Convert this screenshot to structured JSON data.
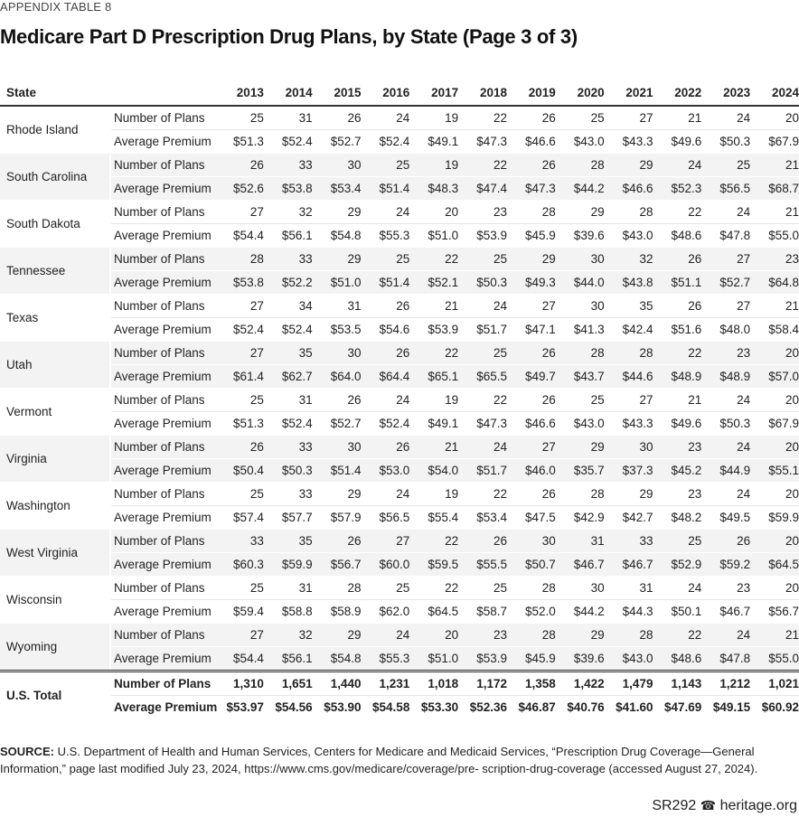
{
  "appendix_label": "APPENDIX TABLE 8",
  "title": "Medicare Part D Prescription Drug Plans, by State (Page 3 of 3)",
  "header": {
    "state": "State",
    "years": [
      "2013",
      "2014",
      "2015",
      "2016",
      "2017",
      "2018",
      "2019",
      "2020",
      "2021",
      "2022",
      "2023",
      "2024"
    ]
  },
  "row_labels": {
    "plans": "Number of Plans",
    "premium": "Average Premium"
  },
  "states": [
    {
      "name": "Rhode Island",
      "plans": [
        "25",
        "31",
        "26",
        "24",
        "19",
        "22",
        "26",
        "25",
        "27",
        "21",
        "24",
        "20"
      ],
      "premium": [
        "$51.3",
        "$52.4",
        "$52.7",
        "$52.4",
        "$49.1",
        "$47.3",
        "$46.6",
        "$43.0",
        "$43.3",
        "$49.6",
        "$50.3",
        "$67.9"
      ]
    },
    {
      "name": "South Carolina",
      "plans": [
        "26",
        "33",
        "30",
        "25",
        "19",
        "22",
        "26",
        "28",
        "29",
        "24",
        "25",
        "21"
      ],
      "premium": [
        "$52.6",
        "$53.8",
        "$53.4",
        "$51.4",
        "$48.3",
        "$47.4",
        "$47.3",
        "$44.2",
        "$46.6",
        "$52.3",
        "$56.5",
        "$68.7"
      ]
    },
    {
      "name": "South Dakota",
      "plans": [
        "27",
        "32",
        "29",
        "24",
        "20",
        "23",
        "28",
        "29",
        "28",
        "22",
        "24",
        "21"
      ],
      "premium": [
        "$54.4",
        "$56.1",
        "$54.8",
        "$55.3",
        "$51.0",
        "$53.9",
        "$45.9",
        "$39.6",
        "$43.0",
        "$48.6",
        "$47.8",
        "$55.0"
      ]
    },
    {
      "name": "Tennessee",
      "plans": [
        "28",
        "33",
        "29",
        "25",
        "22",
        "25",
        "29",
        "30",
        "32",
        "26",
        "27",
        "23"
      ],
      "premium": [
        "$53.8",
        "$52.2",
        "$51.0",
        "$51.4",
        "$52.1",
        "$50.3",
        "$49.3",
        "$44.0",
        "$43.8",
        "$51.1",
        "$52.7",
        "$64.8"
      ]
    },
    {
      "name": "Texas",
      "plans": [
        "27",
        "34",
        "31",
        "26",
        "21",
        "24",
        "27",
        "30",
        "35",
        "26",
        "27",
        "21"
      ],
      "premium": [
        "$52.4",
        "$52.4",
        "$53.5",
        "$54.6",
        "$53.9",
        "$51.7",
        "$47.1",
        "$41.3",
        "$42.4",
        "$51.6",
        "$48.0",
        "$58.4"
      ]
    },
    {
      "name": "Utah",
      "plans": [
        "27",
        "35",
        "30",
        "26",
        "22",
        "25",
        "26",
        "28",
        "28",
        "22",
        "23",
        "20"
      ],
      "premium": [
        "$61.4",
        "$62.7",
        "$64.0",
        "$64.4",
        "$65.1",
        "$65.5",
        "$49.7",
        "$43.7",
        "$44.6",
        "$48.9",
        "$48.9",
        "$57.0"
      ]
    },
    {
      "name": "Vermont",
      "plans": [
        "25",
        "31",
        "26",
        "24",
        "19",
        "22",
        "26",
        "25",
        "27",
        "21",
        "24",
        "20"
      ],
      "premium": [
        "$51.3",
        "$52.4",
        "$52.7",
        "$52.4",
        "$49.1",
        "$47.3",
        "$46.6",
        "$43.0",
        "$43.3",
        "$49.6",
        "$50.3",
        "$67.9"
      ]
    },
    {
      "name": "Virginia",
      "plans": [
        "26",
        "33",
        "30",
        "26",
        "21",
        "24",
        "27",
        "29",
        "30",
        "23",
        "24",
        "20"
      ],
      "premium": [
        "$50.4",
        "$50.3",
        "$51.4",
        "$53.0",
        "$54.0",
        "$51.7",
        "$46.0",
        "$35.7",
        "$37.3",
        "$45.2",
        "$44.9",
        "$55.1"
      ]
    },
    {
      "name": "Washington",
      "plans": [
        "25",
        "33",
        "29",
        "24",
        "19",
        "22",
        "26",
        "28",
        "29",
        "23",
        "24",
        "20"
      ],
      "premium": [
        "$57.4",
        "$57.7",
        "$57.9",
        "$56.5",
        "$55.4",
        "$53.4",
        "$47.5",
        "$42.9",
        "$42.7",
        "$48.2",
        "$49.5",
        "$59.9"
      ]
    },
    {
      "name": "West Virginia",
      "plans": [
        "33",
        "35",
        "26",
        "27",
        "22",
        "26",
        "30",
        "31",
        "33",
        "25",
        "26",
        "20"
      ],
      "premium": [
        "$60.3",
        "$59.9",
        "$56.7",
        "$60.0",
        "$59.5",
        "$55.5",
        "$50.7",
        "$46.7",
        "$46.7",
        "$52.9",
        "$59.2",
        "$64.5"
      ]
    },
    {
      "name": "Wisconsin",
      "plans": [
        "25",
        "31",
        "28",
        "25",
        "22",
        "25",
        "28",
        "30",
        "31",
        "24",
        "23",
        "20"
      ],
      "premium": [
        "$59.4",
        "$58.8",
        "$58.9",
        "$62.0",
        "$64.5",
        "$58.7",
        "$52.0",
        "$44.2",
        "$44.3",
        "$50.1",
        "$46.7",
        "$56.7"
      ]
    },
    {
      "name": "Wyoming",
      "plans": [
        "27",
        "32",
        "29",
        "24",
        "20",
        "23",
        "28",
        "29",
        "28",
        "22",
        "24",
        "21"
      ],
      "premium": [
        "$54.4",
        "$56.1",
        "$54.8",
        "$55.3",
        "$51.0",
        "$53.9",
        "$45.9",
        "$39.6",
        "$43.0",
        "$48.6",
        "$47.8",
        "$55.0"
      ]
    }
  ],
  "total": {
    "name": "U.S. Total",
    "plans": [
      "1,310",
      "1,651",
      "1,440",
      "1,231",
      "1,018",
      "1,172",
      "1,358",
      "1,422",
      "1,479",
      "1,143",
      "1,212",
      "1,021"
    ],
    "premium": [
      "$53.97",
      "$54.56",
      "$53.90",
      "$54.58",
      "$53.30",
      "$52.36",
      "$46.87",
      "$40.76",
      "$41.60",
      "$47.69",
      "$49.15",
      "$60.92"
    ]
  },
  "source": {
    "label": "SOURCE:",
    "text": " U.S. Department of Health and Human Services, Centers for Medicare and Medicaid Services, “Prescription Drug Coverage—General Information,” page last modified July 23, 2024, https://www.cms.gov/medicare/coverage/pre- scription-drug-coverage (accessed August 27, 2024)."
  },
  "footer": {
    "report": "SR292",
    "logo_icon": "bell-icon",
    "site": "heritage.org"
  }
}
